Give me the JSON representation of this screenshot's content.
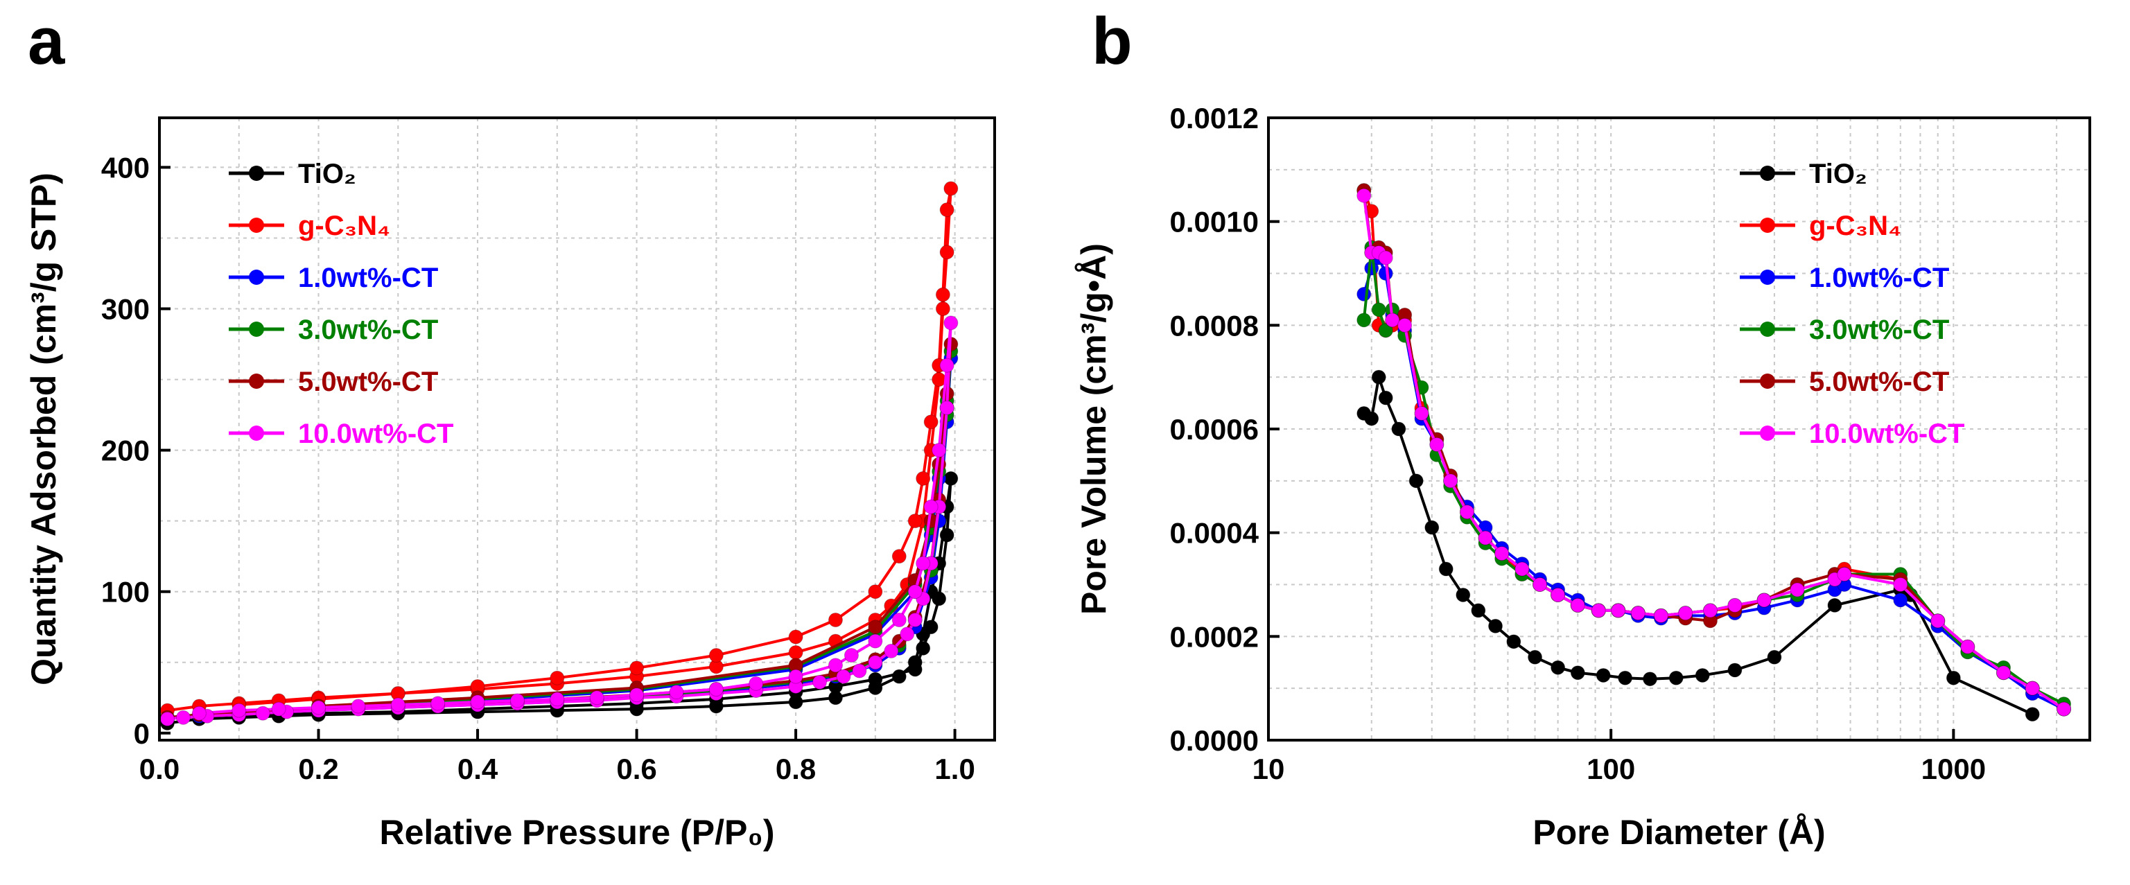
{
  "chart_data": [
    {
      "panel": "a",
      "type": "line",
      "title": "",
      "xlabel": "Relative Pressure (P/P₀)",
      "ylabel": "Quantity Adsorbed (cm³/g STP)",
      "xlim": [
        0.0,
        1.05
      ],
      "ylim": [
        -5,
        435
      ],
      "xticks": [
        0.0,
        0.2,
        0.4,
        0.6,
        0.8,
        1.0
      ],
      "xtick_labels": [
        "0.0",
        "0.2",
        "0.4",
        "0.6",
        "0.8",
        "1.0"
      ],
      "yticks": [
        0,
        100,
        200,
        300,
        400
      ],
      "ytick_labels": [
        "0",
        "100",
        "200",
        "300",
        "400"
      ],
      "grid": true,
      "legend_position": "top-left",
      "series": [
        {
          "name": "TiO₂",
          "color": "#000000",
          "x": [
            0.01,
            0.05,
            0.1,
            0.15,
            0.2,
            0.3,
            0.4,
            0.5,
            0.6,
            0.7,
            0.8,
            0.85,
            0.9,
            0.93,
            0.95,
            0.96,
            0.97,
            0.98,
            0.99,
            0.995,
            0.99,
            0.98,
            0.97,
            0.96,
            0.95,
            0.9,
            0.85,
            0.8,
            0.7,
            0.6,
            0.5,
            0.4,
            0.3,
            0.2,
            0.1
          ],
          "y": [
            7,
            10,
            11,
            12,
            13,
            14,
            15,
            16,
            17,
            19,
            22,
            25,
            32,
            40,
            50,
            70,
            100,
            120,
            160,
            180,
            140,
            95,
            75,
            60,
            45,
            38,
            33,
            29,
            24,
            21,
            19,
            17,
            15,
            14,
            12
          ]
        },
        {
          "name": "g-C₃N₄",
          "color": "#ff0000",
          "x": [
            0.01,
            0.05,
            0.1,
            0.15,
            0.2,
            0.3,
            0.4,
            0.5,
            0.6,
            0.7,
            0.8,
            0.85,
            0.9,
            0.92,
            0.94,
            0.96,
            0.97,
            0.98,
            0.985,
            0.99,
            0.995,
            0.99,
            0.985,
            0.98,
            0.97,
            0.96,
            0.95,
            0.93,
            0.9,
            0.85,
            0.8,
            0.7,
            0.6,
            0.5,
            0.4,
            0.3,
            0.2,
            0.1
          ],
          "y": [
            16,
            19,
            21,
            23,
            25,
            28,
            31,
            35,
            40,
            47,
            57,
            65,
            80,
            90,
            105,
            150,
            200,
            250,
            300,
            340,
            385,
            370,
            310,
            260,
            220,
            180,
            150,
            125,
            100,
            80,
            68,
            55,
            46,
            39,
            33,
            28,
            24,
            20
          ]
        },
        {
          "name": "1.0wt%-CT",
          "color": "#0000ff",
          "x": [
            0.01,
            0.05,
            0.1,
            0.2,
            0.3,
            0.4,
            0.5,
            0.6,
            0.7,
            0.8,
            0.85,
            0.9,
            0.93,
            0.95,
            0.97,
            0.98,
            0.99,
            0.995,
            0.99,
            0.98,
            0.97,
            0.95,
            0.9,
            0.8,
            0.6,
            0.4,
            0.2
          ],
          "y": [
            10,
            12,
            14,
            16,
            18,
            20,
            22,
            25,
            29,
            35,
            40,
            48,
            60,
            75,
            110,
            150,
            220,
            265,
            230,
            180,
            140,
            100,
            70,
            45,
            30,
            23,
            18
          ]
        },
        {
          "name": "3.0wt%-CT",
          "color": "#008000",
          "x": [
            0.01,
            0.05,
            0.1,
            0.2,
            0.3,
            0.4,
            0.5,
            0.6,
            0.7,
            0.8,
            0.85,
            0.9,
            0.93,
            0.95,
            0.97,
            0.98,
            0.99,
            0.995,
            0.99,
            0.98,
            0.97,
            0.95,
            0.9,
            0.8,
            0.6,
            0.4,
            0.2
          ],
          "y": [
            11,
            13,
            15,
            17,
            19,
            21,
            23,
            26,
            30,
            36,
            41,
            50,
            62,
            80,
            115,
            160,
            225,
            270,
            235,
            185,
            145,
            105,
            72,
            47,
            31,
            24,
            19
          ]
        },
        {
          "name": "5.0wt%-CT",
          "color": "#a00000",
          "x": [
            0.01,
            0.05,
            0.1,
            0.2,
            0.3,
            0.4,
            0.5,
            0.6,
            0.7,
            0.8,
            0.85,
            0.9,
            0.93,
            0.95,
            0.97,
            0.98,
            0.99,
            0.995,
            0.99,
            0.98,
            0.97,
            0.95,
            0.9,
            0.8,
            0.6,
            0.4,
            0.2
          ],
          "y": [
            11,
            13,
            15,
            17,
            19,
            21,
            24,
            27,
            31,
            37,
            42,
            52,
            65,
            82,
            120,
            165,
            230,
            275,
            240,
            190,
            150,
            108,
            75,
            48,
            32,
            25,
            19
          ]
        },
        {
          "name": "10.0wt%-CT",
          "color": "#ff00ff",
          "x": [
            0.01,
            0.03,
            0.06,
            0.1,
            0.13,
            0.16,
            0.2,
            0.25,
            0.3,
            0.35,
            0.4,
            0.45,
            0.5,
            0.55,
            0.6,
            0.65,
            0.7,
            0.75,
            0.8,
            0.83,
            0.86,
            0.88,
            0.9,
            0.92,
            0.94,
            0.95,
            0.96,
            0.97,
            0.98,
            0.99,
            0.995,
            0.99,
            0.98,
            0.97,
            0.96,
            0.95,
            0.93,
            0.9,
            0.87,
            0.85,
            0.8,
            0.75,
            0.7,
            0.65,
            0.6,
            0.55,
            0.5,
            0.45,
            0.4,
            0.35,
            0.3,
            0.25,
            0.2,
            0.15,
            0.1,
            0.05
          ],
          "y": [
            10,
            11,
            12,
            13,
            14,
            15,
            16,
            17,
            18,
            19,
            20,
            21,
            22,
            23,
            25,
            26,
            28,
            30,
            33,
            36,
            40,
            44,
            50,
            58,
            70,
            80,
            95,
            120,
            160,
            230,
            290,
            260,
            200,
            160,
            120,
            100,
            80,
            65,
            55,
            48,
            40,
            35,
            31,
            29,
            27,
            25,
            24,
            23,
            22,
            21,
            20,
            19,
            18,
            17,
            16,
            14
          ]
        }
      ]
    },
    {
      "panel": "b",
      "type": "line",
      "title": "",
      "xlabel": "Pore Diameter (Å)",
      "ylabel": "Pore Volume (cm³/g•Å)",
      "xscale": "log",
      "xlim": [
        10,
        2500
      ],
      "ylim": [
        0,
        0.0012
      ],
      "xticks": [
        10,
        100,
        1000
      ],
      "xtick_labels": [
        "10",
        "100",
        "1000"
      ],
      "yticks": [
        0,
        0.0002,
        0.0004,
        0.0006,
        0.0008,
        0.001,
        0.0012
      ],
      "ytick_labels": [
        "0.0000",
        "0.0002",
        "0.0004",
        "0.0006",
        "0.0008",
        "0.0010",
        "0.0012"
      ],
      "grid": true,
      "legend_position": "top-right",
      "series": [
        {
          "name": "TiO₂",
          "color": "#000000",
          "x": [
            19,
            20,
            21,
            22,
            24,
            27,
            30,
            33,
            37,
            41,
            46,
            52,
            60,
            70,
            80,
            95,
            110,
            130,
            155,
            185,
            230,
            300,
            450,
            700,
            750,
            1000,
            1700
          ],
          "y": [
            0.00063,
            0.00062,
            0.0007,
            0.00066,
            0.0006,
            0.0005,
            0.00041,
            0.00033,
            0.00028,
            0.00025,
            0.00022,
            0.00019,
            0.00016,
            0.00014,
            0.00013,
            0.000125,
            0.00012,
            0.000118,
            0.00012,
            0.000125,
            0.000135,
            0.00016,
            0.00026,
            0.00029,
            0.00028,
            0.00012,
            5e-05
          ]
        },
        {
          "name": "g-C₃N₄",
          "color": "#ff0000",
          "x": [
            19,
            20,
            21,
            22,
            23,
            25,
            28,
            31,
            34,
            38,
            43,
            48,
            55,
            62,
            70,
            80,
            92,
            105,
            120,
            140,
            165,
            195,
            230,
            280,
            350,
            450,
            480,
            700,
            900,
            1100,
            1400,
            1700,
            2100
          ],
          "y": [
            0.00106,
            0.00102,
            0.0008,
            0.00079,
            0.0008,
            0.00081,
            0.00064,
            0.00058,
            0.0005,
            0.00044,
            0.00039,
            0.00036,
            0.00032,
            0.0003,
            0.00028,
            0.00026,
            0.00025,
            0.00025,
            0.000245,
            0.00024,
            0.000245,
            0.00025,
            0.000255,
            0.00027,
            0.0003,
            0.00032,
            0.00033,
            0.00031,
            0.00023,
            0.00018,
            0.00013,
            0.0001,
            6e-05
          ]
        },
        {
          "name": "1.0wt%-CT",
          "color": "#0000ff",
          "x": [
            19,
            20,
            21,
            22,
            23,
            25,
            28,
            31,
            34,
            38,
            43,
            48,
            55,
            62,
            70,
            80,
            92,
            105,
            120,
            140,
            165,
            195,
            230,
            280,
            350,
            450,
            480,
            700,
            900,
            1100,
            1400,
            1700,
            2100
          ],
          "y": [
            0.00086,
            0.00091,
            0.00093,
            0.0009,
            0.00082,
            0.00079,
            0.00062,
            0.00057,
            0.0005,
            0.00045,
            0.00041,
            0.00037,
            0.00034,
            0.00031,
            0.00029,
            0.00027,
            0.00025,
            0.00025,
            0.00024,
            0.000235,
            0.00024,
            0.00024,
            0.000245,
            0.000255,
            0.00027,
            0.00029,
            0.0003,
            0.00027,
            0.00022,
            0.00017,
            0.00013,
            9e-05,
            6e-05
          ]
        },
        {
          "name": "3.0wt%-CT",
          "color": "#008000",
          "x": [
            19,
            20,
            21,
            22,
            23,
            25,
            28,
            31,
            34,
            38,
            43,
            48,
            55,
            62,
            70,
            80,
            92,
            105,
            120,
            140,
            165,
            195,
            230,
            280,
            350,
            450,
            480,
            700,
            900,
            1100,
            1400,
            1700,
            2100
          ],
          "y": [
            0.00081,
            0.00095,
            0.00083,
            0.00079,
            0.00083,
            0.00078,
            0.00068,
            0.00055,
            0.00049,
            0.00043,
            0.00038,
            0.00035,
            0.00032,
            0.0003,
            0.00028,
            0.00026,
            0.00025,
            0.00025,
            0.000245,
            0.00024,
            0.000245,
            0.00025,
            0.00026,
            0.00027,
            0.00028,
            0.00031,
            0.00032,
            0.00032,
            0.00023,
            0.00017,
            0.00014,
            0.0001,
            7e-05
          ]
        },
        {
          "name": "5.0wt%-CT",
          "color": "#a00000",
          "x": [
            19,
            20,
            21,
            22,
            23,
            25,
            28,
            31,
            34,
            38,
            43,
            48,
            55,
            62,
            70,
            80,
            92,
            105,
            120,
            140,
            165,
            195,
            230,
            280,
            350,
            450,
            480,
            700,
            900,
            1100,
            1400,
            1700,
            2100
          ],
          "y": [
            0.00106,
            0.00094,
            0.00095,
            0.00094,
            0.00081,
            0.00082,
            0.00063,
            0.00058,
            0.00051,
            0.00044,
            0.00039,
            0.00036,
            0.00033,
            0.0003,
            0.00028,
            0.00026,
            0.00025,
            0.00025,
            0.000245,
            0.00024,
            0.000235,
            0.00023,
            0.00025,
            0.00027,
            0.0003,
            0.00032,
            0.00032,
            0.00031,
            0.00023,
            0.00018,
            0.00013,
            0.0001,
            6e-05
          ]
        },
        {
          "name": "10.0wt%-CT",
          "color": "#ff00ff",
          "x": [
            19,
            20,
            21,
            22,
            23,
            25,
            28,
            31,
            34,
            38,
            43,
            48,
            55,
            62,
            70,
            80,
            92,
            105,
            120,
            140,
            165,
            195,
            230,
            280,
            350,
            450,
            480,
            700,
            900,
            1100,
            1400,
            1700,
            2100
          ],
          "y": [
            0.00105,
            0.00094,
            0.00094,
            0.00093,
            0.00081,
            0.0008,
            0.00063,
            0.00057,
            0.0005,
            0.00044,
            0.00039,
            0.00036,
            0.00033,
            0.0003,
            0.00028,
            0.00026,
            0.00025,
            0.00025,
            0.000245,
            0.00024,
            0.000245,
            0.00025,
            0.00026,
            0.00027,
            0.00029,
            0.00031,
            0.00032,
            0.0003,
            0.00023,
            0.00018,
            0.00013,
            0.0001,
            6e-05
          ]
        }
      ]
    }
  ],
  "panels": {
    "a": {
      "letter": "a"
    },
    "b": {
      "letter": "b"
    }
  }
}
